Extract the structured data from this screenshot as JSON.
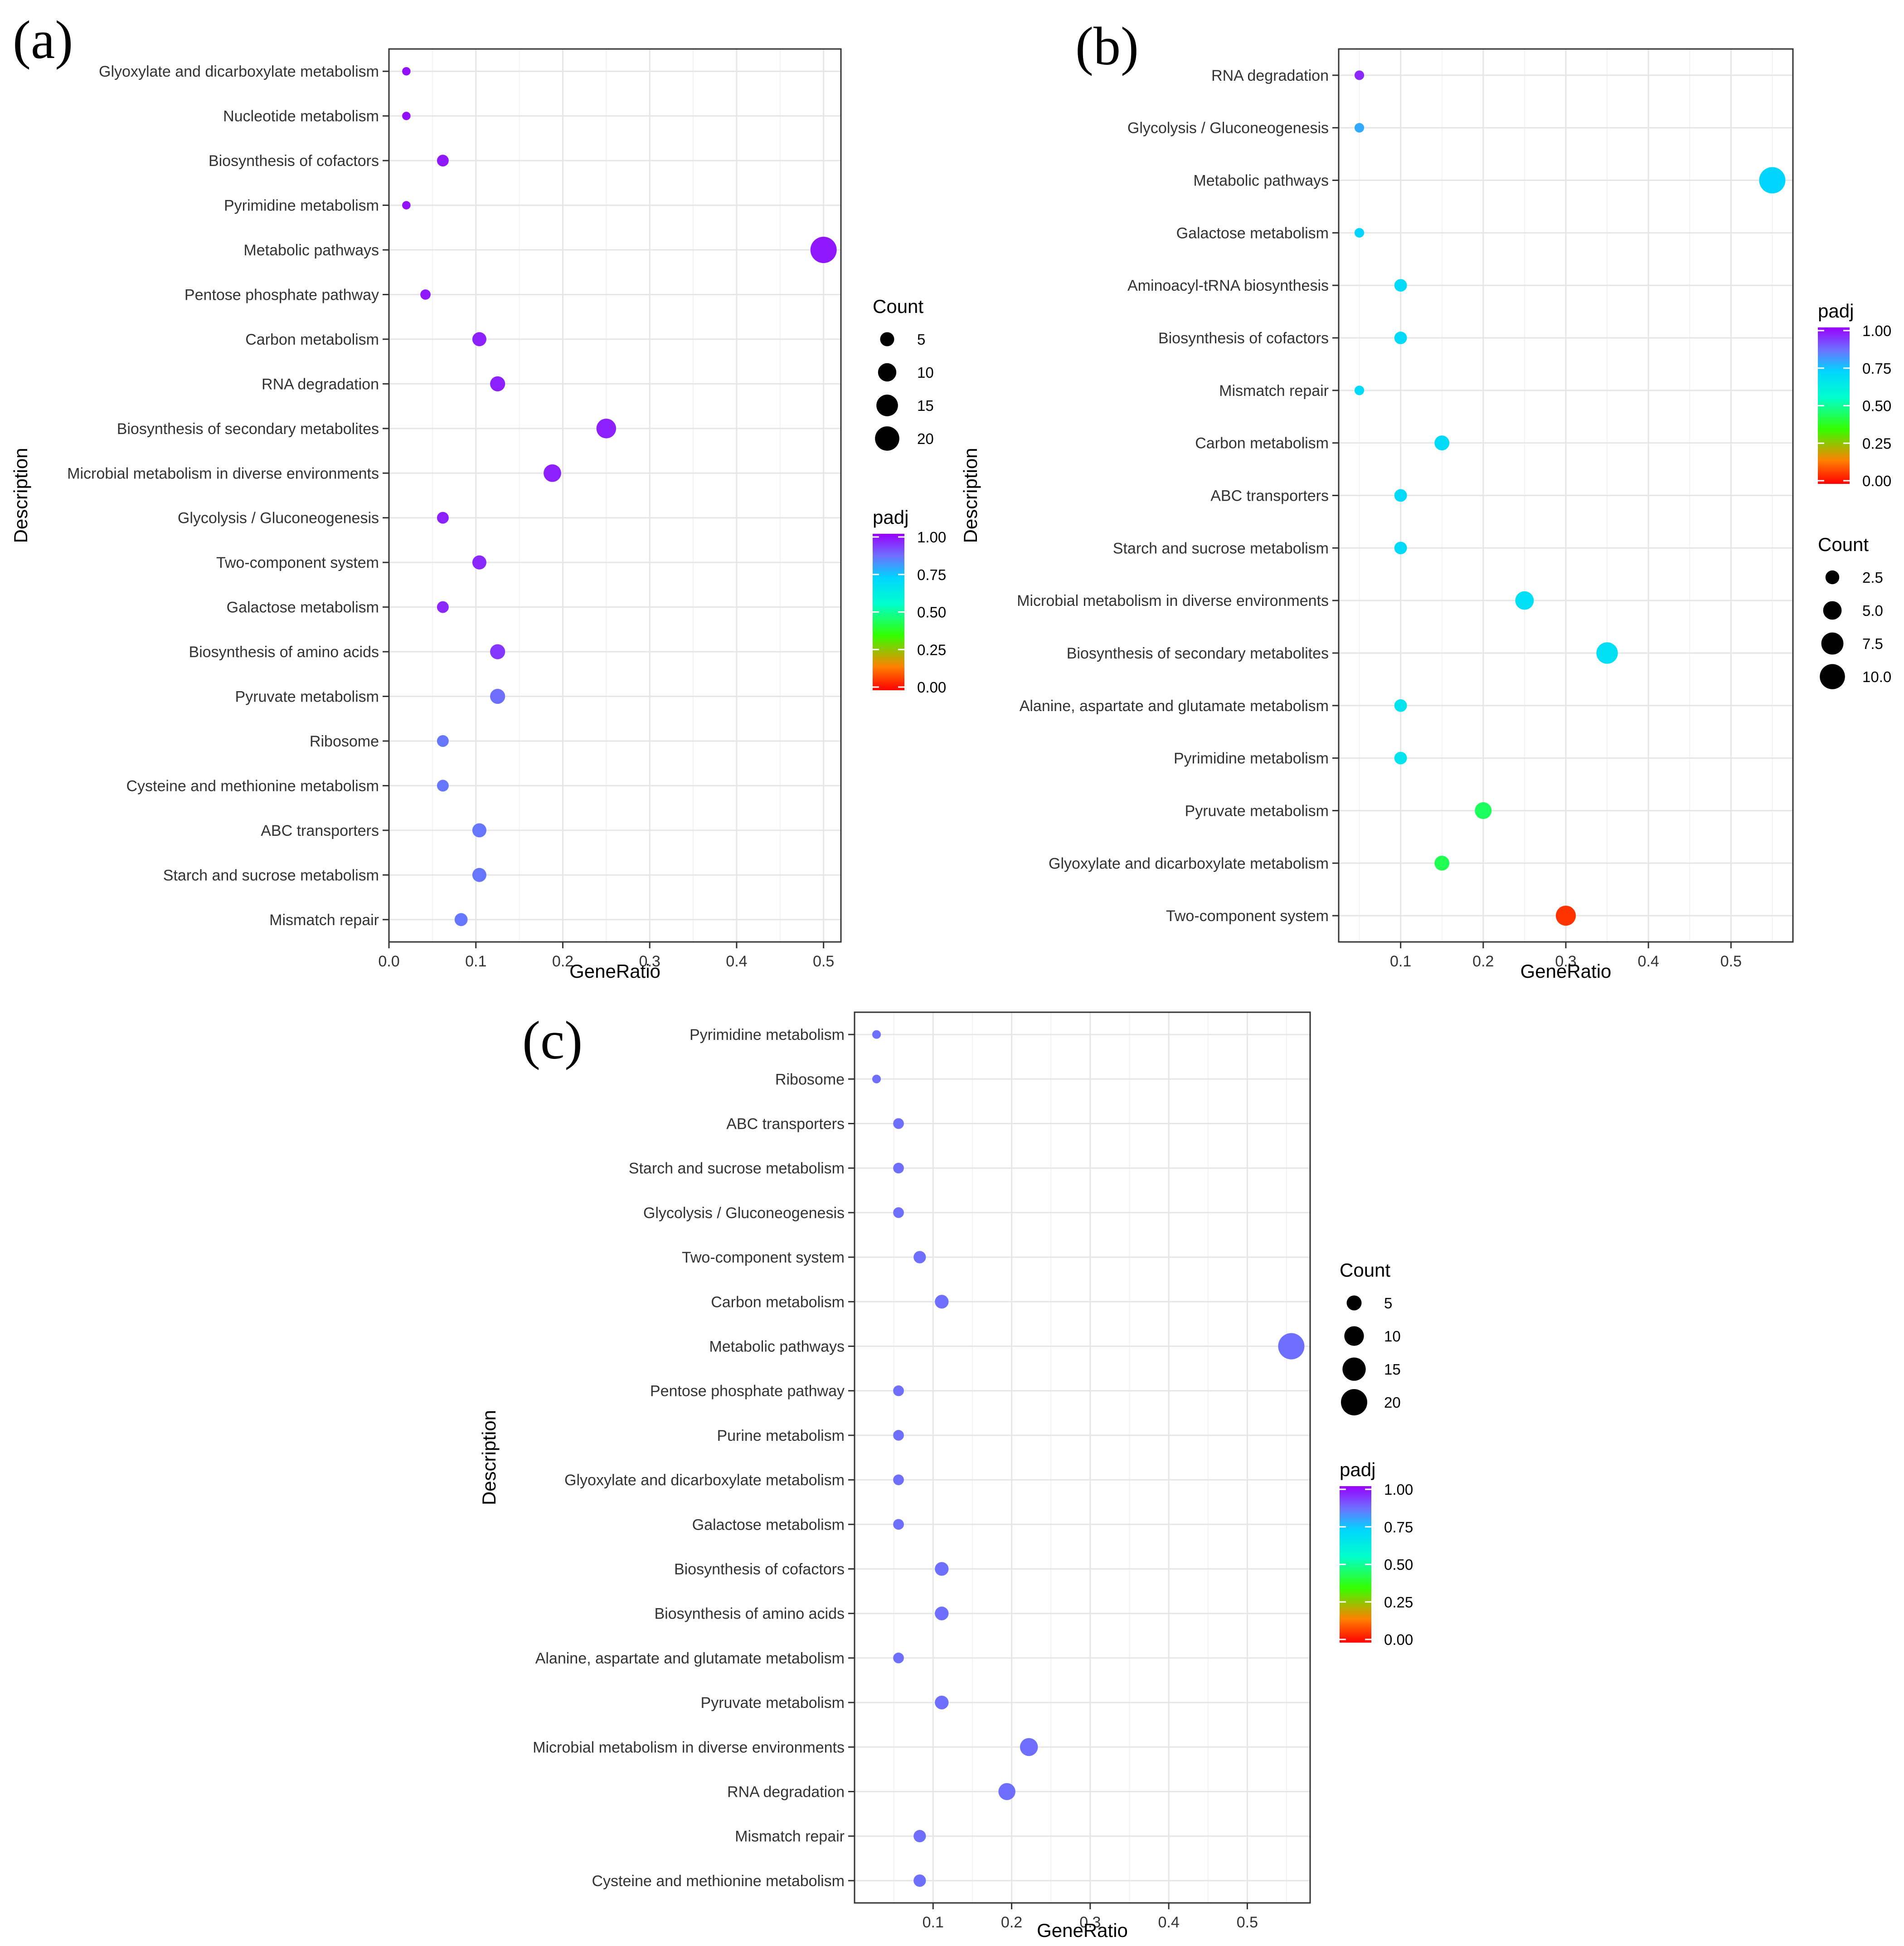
{
  "colors": {
    "background": "#ffffff",
    "panel_border": "#333333",
    "grid_major": "#e6e6e6",
    "grid_minor": "#f2f2f2",
    "text": "#333333",
    "colorbar_stops": [
      "#ff0000",
      "#ff8000",
      "#00ff00",
      "#00ffff",
      "#6f6fff",
      "#9900ff"
    ]
  },
  "chart_data": [
    {
      "panel": "(a)",
      "type": "scatter",
      "xlabel": "GeneRatio",
      "ylabel": "Description",
      "xlim": [
        0.0,
        0.52
      ],
      "xticks": [
        0.0,
        0.1,
        0.2,
        0.3,
        0.4,
        0.5
      ],
      "xtick_labels": [
        "0.0",
        "0.1",
        "0.2",
        "0.3",
        "0.4",
        "0.5"
      ],
      "points": [
        {
          "description": "Glyoxylate and dicarboxylate metabolism",
          "gene_ratio": 0.02,
          "count": 1,
          "padj": 0.98
        },
        {
          "description": "Nucleotide metabolism",
          "gene_ratio": 0.02,
          "count": 1,
          "padj": 0.98
        },
        {
          "description": "Biosynthesis of cofactors",
          "gene_ratio": 0.062,
          "count": 3,
          "padj": 0.97
        },
        {
          "description": "Pyrimidine metabolism",
          "gene_ratio": 0.02,
          "count": 1,
          "padj": 0.98
        },
        {
          "description": "Metabolic pathways",
          "gene_ratio": 0.5,
          "count": 24,
          "padj": 0.97
        },
        {
          "description": "Pentose phosphate pathway",
          "gene_ratio": 0.042,
          "count": 2,
          "padj": 0.97
        },
        {
          "description": "Carbon metabolism",
          "gene_ratio": 0.104,
          "count": 5,
          "padj": 0.96
        },
        {
          "description": "RNA degradation",
          "gene_ratio": 0.125,
          "count": 6,
          "padj": 0.96
        },
        {
          "description": "Biosynthesis of secondary metabolites",
          "gene_ratio": 0.25,
          "count": 12,
          "padj": 0.96
        },
        {
          "description": "Microbial metabolism in diverse environments",
          "gene_ratio": 0.188,
          "count": 9,
          "padj": 0.96
        },
        {
          "description": "Glycolysis / Gluconeogenesis",
          "gene_ratio": 0.062,
          "count": 3,
          "padj": 0.96
        },
        {
          "description": "Two-component system",
          "gene_ratio": 0.104,
          "count": 5,
          "padj": 0.95
        },
        {
          "description": "Galactose metabolism",
          "gene_ratio": 0.062,
          "count": 3,
          "padj": 0.95
        },
        {
          "description": "Biosynthesis of amino acids",
          "gene_ratio": 0.125,
          "count": 6,
          "padj": 0.93
        },
        {
          "description": "Pyruvate metabolism",
          "gene_ratio": 0.125,
          "count": 6,
          "padj": 0.86
        },
        {
          "description": "Ribosome",
          "gene_ratio": 0.062,
          "count": 3,
          "padj": 0.85
        },
        {
          "description": "Cysteine and methionine metabolism",
          "gene_ratio": 0.062,
          "count": 3,
          "padj": 0.85
        },
        {
          "description": "ABC transporters",
          "gene_ratio": 0.104,
          "count": 5,
          "padj": 0.85
        },
        {
          "description": "Starch and sucrose metabolism",
          "gene_ratio": 0.104,
          "count": 5,
          "padj": 0.85
        },
        {
          "description": "Mismatch repair",
          "gene_ratio": 0.083,
          "count": 4,
          "padj": 0.85
        }
      ],
      "legends": {
        "order": [
          "count",
          "padj"
        ],
        "count": {
          "title": "Count",
          "values": [
            5,
            10,
            15,
            20
          ],
          "labels": [
            "5",
            "10",
            "15",
            "20"
          ]
        },
        "padj": {
          "title": "padj",
          "ticks": [
            1.0,
            0.75,
            0.5,
            0.25,
            0.0
          ],
          "labels": [
            "1.00",
            "0.75",
            "0.50",
            "0.25",
            "0.00"
          ]
        }
      }
    },
    {
      "panel": "(b)",
      "type": "scatter",
      "xlabel": "GeneRatio",
      "ylabel": "Description",
      "xlim": [
        0.025,
        0.575
      ],
      "xticks": [
        0.1,
        0.2,
        0.3,
        0.4,
        0.5
      ],
      "xtick_labels": [
        "0.1",
        "0.2",
        "0.3",
        "0.4",
        "0.5"
      ],
      "points": [
        {
          "description": "RNA degradation",
          "gene_ratio": 0.05,
          "count": 1,
          "padj": 0.95
        },
        {
          "description": "Glycolysis / Gluconeogenesis",
          "gene_ratio": 0.05,
          "count": 1,
          "padj": 0.78
        },
        {
          "description": "Metabolic pathways",
          "gene_ratio": 0.55,
          "count": 11,
          "padj": 0.72
        },
        {
          "description": "Galactose metabolism",
          "gene_ratio": 0.05,
          "count": 1,
          "padj": 0.72
        },
        {
          "description": "Aminoacyl-tRNA biosynthesis",
          "gene_ratio": 0.1,
          "count": 2,
          "padj": 0.7
        },
        {
          "description": "Biosynthesis of cofactors",
          "gene_ratio": 0.1,
          "count": 2,
          "padj": 0.7
        },
        {
          "description": "Mismatch repair",
          "gene_ratio": 0.05,
          "count": 1,
          "padj": 0.7
        },
        {
          "description": "Carbon metabolism",
          "gene_ratio": 0.15,
          "count": 3,
          "padj": 0.7
        },
        {
          "description": "ABC transporters",
          "gene_ratio": 0.1,
          "count": 2,
          "padj": 0.7
        },
        {
          "description": "Starch and sucrose metabolism",
          "gene_ratio": 0.1,
          "count": 2,
          "padj": 0.7
        },
        {
          "description": "Microbial metabolism in diverse environments",
          "gene_ratio": 0.25,
          "count": 5,
          "padj": 0.68
        },
        {
          "description": "Biosynthesis of secondary metabolites",
          "gene_ratio": 0.35,
          "count": 7,
          "padj": 0.68
        },
        {
          "description": "Alanine, aspartate and glutamate metabolism",
          "gene_ratio": 0.1,
          "count": 2,
          "padj": 0.66
        },
        {
          "description": "Pyrimidine metabolism",
          "gene_ratio": 0.1,
          "count": 2,
          "padj": 0.66
        },
        {
          "description": "Pyruvate metabolism",
          "gene_ratio": 0.2,
          "count": 4,
          "padj": 0.44
        },
        {
          "description": "Glyoxylate and dicarboxylate metabolism",
          "gene_ratio": 0.15,
          "count": 3,
          "padj": 0.43
        },
        {
          "description": "Two-component system",
          "gene_ratio": 0.3,
          "count": 6,
          "padj": 0.06
        }
      ],
      "legends": {
        "order": [
          "padj",
          "count"
        ],
        "count": {
          "title": "Count",
          "values": [
            2.5,
            5.0,
            7.5,
            10.0
          ],
          "labels": [
            "2.5",
            "5.0",
            "7.5",
            "10.0"
          ]
        },
        "padj": {
          "title": "padj",
          "ticks": [
            1.0,
            0.75,
            0.5,
            0.25,
            0.0
          ],
          "labels": [
            "1.00",
            "0.75",
            "0.50",
            "0.25",
            "0.00"
          ]
        }
      }
    },
    {
      "panel": "(c)",
      "type": "scatter",
      "xlabel": "GeneRatio",
      "ylabel": "Description",
      "xlim": [
        0.0,
        0.58
      ],
      "xticks": [
        0.1,
        0.2,
        0.3,
        0.4,
        0.5
      ],
      "xtick_labels": [
        "0.1",
        "0.2",
        "0.3",
        "0.4",
        "0.5"
      ],
      "points": [
        {
          "description": "Pyrimidine metabolism",
          "gene_ratio": 0.028,
          "count": 1,
          "padj": 0.86
        },
        {
          "description": "Ribosome",
          "gene_ratio": 0.028,
          "count": 1,
          "padj": 0.86
        },
        {
          "description": "ABC transporters",
          "gene_ratio": 0.056,
          "count": 2,
          "padj": 0.86
        },
        {
          "description": "Starch and sucrose metabolism",
          "gene_ratio": 0.056,
          "count": 2,
          "padj": 0.86
        },
        {
          "description": "Glycolysis / Gluconeogenesis",
          "gene_ratio": 0.056,
          "count": 2,
          "padj": 0.86
        },
        {
          "description": "Two-component system",
          "gene_ratio": 0.083,
          "count": 3,
          "padj": 0.86
        },
        {
          "description": "Carbon metabolism",
          "gene_ratio": 0.111,
          "count": 4,
          "padj": 0.86
        },
        {
          "description": "Metabolic pathways",
          "gene_ratio": 0.556,
          "count": 20,
          "padj": 0.86
        },
        {
          "description": "Pentose phosphate pathway",
          "gene_ratio": 0.056,
          "count": 2,
          "padj": 0.86
        },
        {
          "description": "Purine metabolism",
          "gene_ratio": 0.056,
          "count": 2,
          "padj": 0.86
        },
        {
          "description": "Glyoxylate and dicarboxylate metabolism",
          "gene_ratio": 0.056,
          "count": 2,
          "padj": 0.86
        },
        {
          "description": "Galactose metabolism",
          "gene_ratio": 0.056,
          "count": 2,
          "padj": 0.86
        },
        {
          "description": "Biosynthesis of cofactors",
          "gene_ratio": 0.111,
          "count": 4,
          "padj": 0.86
        },
        {
          "description": "Biosynthesis of amino acids",
          "gene_ratio": 0.111,
          "count": 4,
          "padj": 0.86
        },
        {
          "description": "Alanine, aspartate and glutamate metabolism",
          "gene_ratio": 0.056,
          "count": 2,
          "padj": 0.86
        },
        {
          "description": "Pyruvate metabolism",
          "gene_ratio": 0.111,
          "count": 4,
          "padj": 0.86
        },
        {
          "description": "Microbial metabolism in diverse environments",
          "gene_ratio": 0.222,
          "count": 8,
          "padj": 0.86
        },
        {
          "description": "RNA degradation",
          "gene_ratio": 0.194,
          "count": 7,
          "padj": 0.86
        },
        {
          "description": "Mismatch repair",
          "gene_ratio": 0.083,
          "count": 3,
          "padj": 0.86
        },
        {
          "description": "Cysteine and methionine metabolism",
          "gene_ratio": 0.083,
          "count": 3,
          "padj": 0.86
        }
      ],
      "legends": {
        "order": [
          "count",
          "padj"
        ],
        "count": {
          "title": "Count",
          "values": [
            5,
            10,
            15,
            20
          ],
          "labels": [
            "5",
            "10",
            "15",
            "20"
          ]
        },
        "padj": {
          "title": "padj",
          "ticks": [
            1.0,
            0.75,
            0.5,
            0.25,
            0.0
          ],
          "labels": [
            "1.00",
            "0.75",
            "0.50",
            "0.25",
            "0.00"
          ]
        }
      }
    }
  ]
}
